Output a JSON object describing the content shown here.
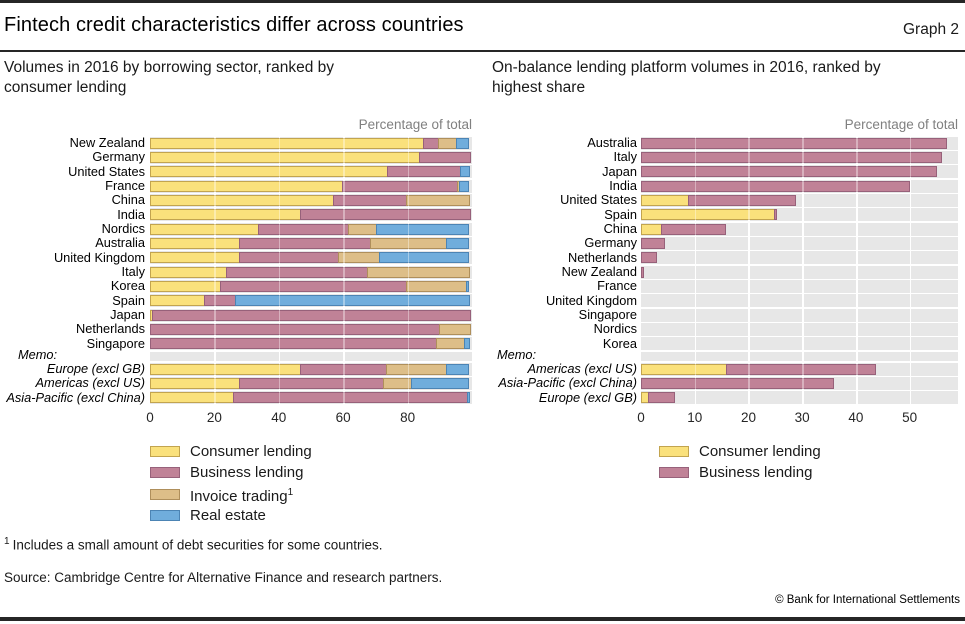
{
  "header": {
    "title": "Fintech credit characteristics differ across countries",
    "graph_label": "Graph 2"
  },
  "footer": {
    "footnote_marker": "1",
    "footnote_text": "Includes a small amount of debt securities for some countries.",
    "source": "Source: Cambridge Centre for Alternative Finance and research partners.",
    "copyright": "© Bank for International Settlements"
  },
  "colors": {
    "consumer": "#FAE17C",
    "consumer_border": "#C2A44F",
    "business": "#C08297",
    "business_border": "#97617A",
    "invoice": "#DDBE88",
    "invoice_border": "#AF8F5B",
    "real_estate": "#70ADDC",
    "real_estate_border": "#4C84B4",
    "plot_stripe": "#E7E7E7",
    "gridline": "#FFFFFF",
    "axis_note_gray": "#808080"
  },
  "chart_data": [
    {
      "type": "bar",
      "orientation": "horizontal",
      "stacked": true,
      "title": "Volumes in 2016 by borrowing sector, ranked by consumer lending",
      "axis_note": "Percentage of total",
      "xlim": [
        0,
        100
      ],
      "xticks": [
        0,
        20,
        40,
        60,
        80
      ],
      "categories": [
        "New Zealand",
        "Germany",
        "United States",
        "France",
        "China",
        "India",
        "Nordics",
        "Australia",
        "United Kingdom",
        "Italy",
        "Korea",
        "Spain",
        "Japan",
        "Netherlands",
        "Singapore"
      ],
      "memo_label": "Memo:",
      "memo_categories": [
        "Europe (excl GB)",
        "Americas (excl US)",
        "Asia-Pacific (excl China)"
      ],
      "series": [
        {
          "name": "Consumer lending",
          "key": "consumer",
          "values": [
            85,
            84,
            74,
            60,
            57,
            47,
            34,
            28,
            28,
            24,
            22,
            17,
            1,
            0,
            0
          ],
          "memo_values": [
            47,
            28,
            26
          ]
        },
        {
          "name": "Business lending",
          "key": "business",
          "values": [
            5,
            16,
            23,
            36,
            23,
            53,
            28,
            41,
            31,
            44,
            58,
            10,
            99,
            90,
            89
          ],
          "memo_values": [
            27,
            45,
            73
          ]
        },
        {
          "name": "Invoice trading",
          "sup": "1",
          "key": "invoice",
          "values": [
            6,
            0,
            0,
            1,
            20,
            0,
            9,
            24,
            13,
            32,
            19,
            0,
            0,
            10,
            9
          ],
          "memo_values": [
            19,
            9,
            0
          ]
        },
        {
          "name": "Real estate",
          "key": "real_estate",
          "values": [
            4,
            0,
            3,
            3,
            0,
            0,
            29,
            7,
            28,
            0,
            1,
            73,
            0,
            0,
            2
          ],
          "memo_values": [
            7,
            18,
            1
          ]
        }
      ]
    },
    {
      "type": "bar",
      "orientation": "horizontal",
      "stacked": true,
      "title": "On-balance lending platform volumes in 2016, ranked by highest share",
      "axis_note": "Percentage of total",
      "xlim": [
        0,
        59
      ],
      "xticks": [
        0,
        10,
        20,
        30,
        40,
        50
      ],
      "categories": [
        "Australia",
        "Italy",
        "Japan",
        "India",
        "United States",
        "Spain",
        "China",
        "Germany",
        "Netherlands",
        "New Zealand",
        "France",
        "United Kingdom",
        "Singapore",
        "Nordics",
        "Korea"
      ],
      "memo_label": "Memo:",
      "memo_categories": [
        "Americas (excl US)",
        "Asia-Pacific (excl China)",
        "Europe (excl GB)"
      ],
      "series": [
        {
          "name": "Consumer lending",
          "key": "consumer",
          "values": [
            0,
            0,
            0,
            0,
            9,
            25,
            4,
            0,
            0,
            0,
            0,
            0,
            0,
            0,
            0
          ],
          "memo_values": [
            16,
            0,
            1.5
          ]
        },
        {
          "name": "Business lending",
          "key": "business",
          "values": [
            57,
            56,
            55,
            50,
            20,
            0.5,
            12,
            4.5,
            3,
            0.5,
            0,
            0,
            0,
            0,
            0
          ],
          "memo_values": [
            28,
            36,
            5
          ]
        }
      ]
    }
  ]
}
